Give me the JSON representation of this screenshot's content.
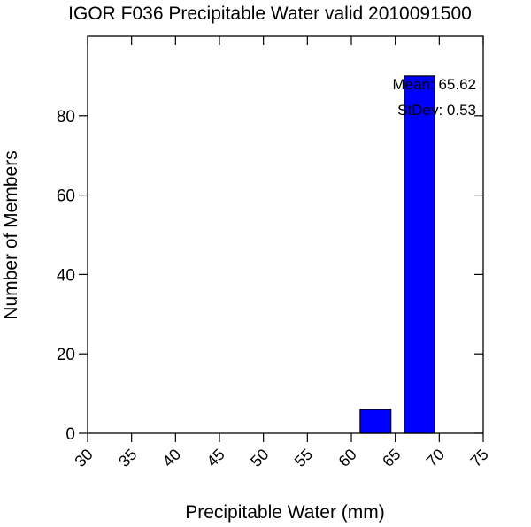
{
  "chart_data": {
    "type": "bar",
    "title": "IGOR F036 Precipitable Water valid 2010091500",
    "xlabel": "Precipitable Water (mm)",
    "ylabel": "Number of Members",
    "xlim": [
      30,
      75
    ],
    "ylim": [
      0,
      100
    ],
    "x_ticks": [
      "30",
      "35",
      "40",
      "45",
      "50",
      "55",
      "60",
      "65",
      "70",
      "75"
    ],
    "y_ticks": [
      "0",
      "20",
      "40",
      "60",
      "80"
    ],
    "bins": [
      {
        "x_start": 61,
        "x_end": 64.5,
        "count": 6
      },
      {
        "x_start": 66,
        "x_end": 69.5,
        "count": 90
      }
    ],
    "bar_color": "#0000ff",
    "grid": false,
    "annotations": {
      "mean": "Mean: 65.62",
      "stdev": "StDev: 0.53"
    }
  }
}
